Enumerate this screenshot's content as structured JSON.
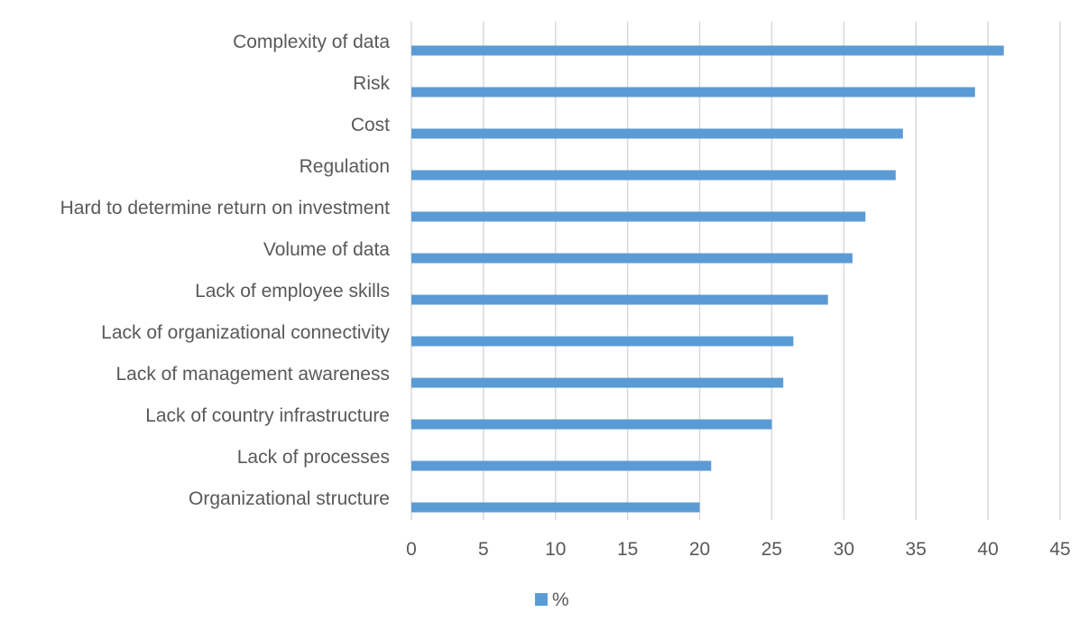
{
  "chart_data": {
    "type": "bar",
    "orientation": "horizontal",
    "title": "",
    "xlabel": "",
    "ylabel": "",
    "categories": [
      "Complexity of data",
      "Risk",
      "Cost",
      "Regulation",
      "Hard to determine return on investment",
      "Volume of data",
      "Lack of employee skills",
      "Lack of organizational connectivity",
      "Lack of management awareness",
      "Lack of country infrastructure",
      "Lack of processes",
      "Organizational structure"
    ],
    "series": [
      {
        "name": "%",
        "color": "#5b9bd5",
        "values": [
          41.1,
          39.1,
          34.1,
          33.6,
          31.5,
          30.6,
          28.9,
          26.5,
          25.8,
          25.0,
          20.8,
          20.0
        ]
      }
    ],
    "xlim": [
      0,
      45
    ],
    "xticks": [
      "0",
      "5",
      "10",
      "15",
      "20",
      "25",
      "30",
      "35",
      "40",
      "45"
    ],
    "grid": true,
    "legend": "bottom"
  }
}
